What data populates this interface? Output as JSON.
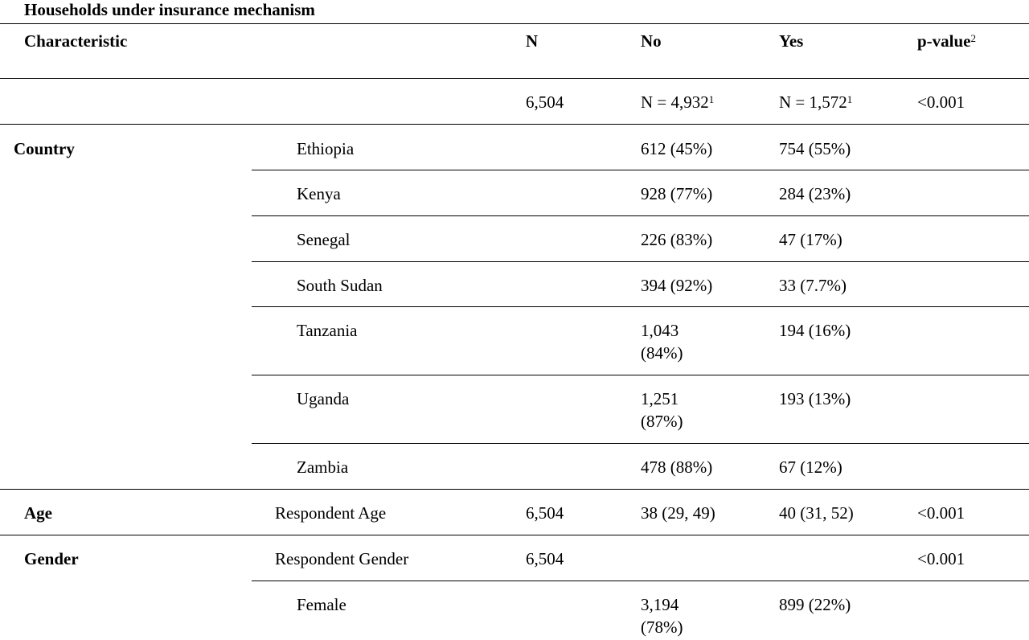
{
  "title": "Households under insurance mechanism",
  "header": {
    "characteristic": "Characteristic",
    "n": "N",
    "no": "No",
    "yes": "Yes",
    "pvalue": "p-value",
    "pvalue_sup": "2"
  },
  "totals": {
    "n": "6,504",
    "no": "N = 4,932",
    "no_sup": "1",
    "yes": "N = 1,572",
    "yes_sup": "1",
    "pvalue": "<0.001"
  },
  "country": {
    "label": "Country",
    "rows": [
      {
        "name": "Ethiopia",
        "no": "612 (45%)",
        "yes": "754 (55%)"
      },
      {
        "name": "Kenya",
        "no": "928 (77%)",
        "yes": "284 (23%)"
      },
      {
        "name": "Senegal",
        "no": "226 (83%)",
        "yes": "47 (17%)"
      },
      {
        "name": "South Sudan",
        "no": "394 (92%)",
        "yes": "33 (7.7%)"
      },
      {
        "name": "Tanzania",
        "no_line1": "1,043",
        "no_line2": "(84%)",
        "yes": "194 (16%)"
      },
      {
        "name": "Uganda",
        "no_line1": "1,251",
        "no_line2": "(87%)",
        "yes": "193 (13%)"
      },
      {
        "name": "Zambia",
        "no": "478 (88%)",
        "yes": "67 (12%)"
      }
    ]
  },
  "age": {
    "label": "Age",
    "sub": "Respondent Age",
    "n": "6,504",
    "no": "38 (29, 49)",
    "yes": "40 (31, 52)",
    "pvalue": "<0.001"
  },
  "gender": {
    "label": "Gender",
    "sub": "Respondent Gender",
    "n": "6,504",
    "pvalue": "<0.001",
    "female": {
      "name": "Female",
      "no_line1": "3,194",
      "no_line2": "(78%)",
      "yes": "899 (22%)"
    }
  }
}
